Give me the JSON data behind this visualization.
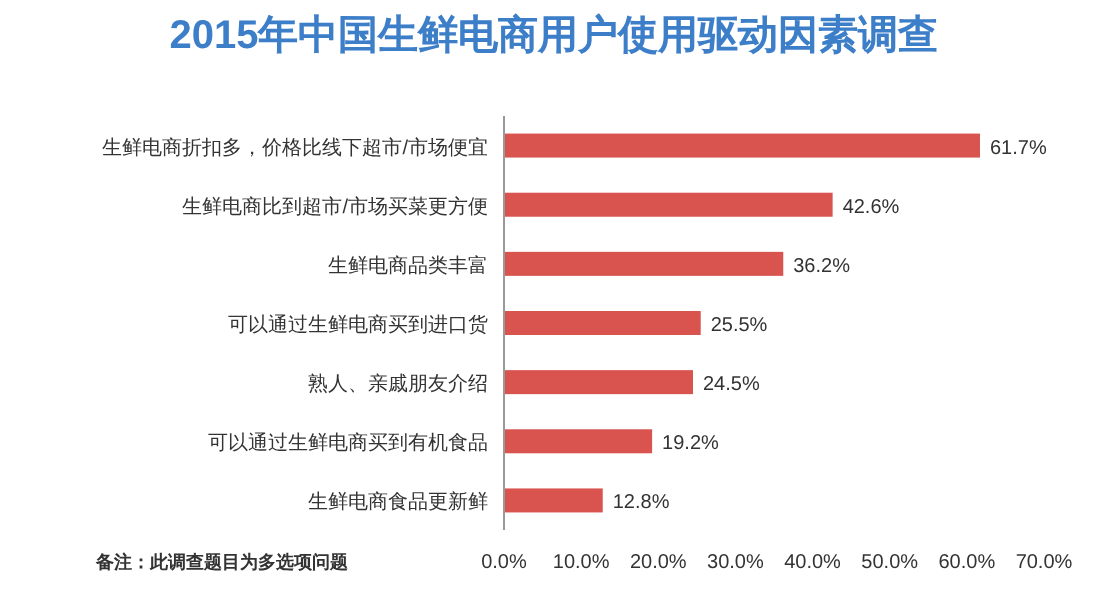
{
  "chart_data": {
    "type": "bar",
    "orientation": "horizontal",
    "title": "2015年中国生鲜电商用户使用驱动因素调查",
    "categories": [
      "生鲜电商折扣多，价格比线下超市/市场便宜",
      "生鲜电商比到超市/市场买菜更方便",
      "生鲜电商品类丰富",
      "可以通过生鲜电商买到进口货",
      "熟人、亲戚朋友介绍",
      "可以通过生鲜电商买到有机食品",
      "生鲜电商食品更新鲜"
    ],
    "values": [
      61.7,
      42.6,
      36.2,
      25.5,
      24.5,
      19.2,
      12.8
    ],
    "value_labels": [
      "61.7%",
      "42.6%",
      "36.2%",
      "25.5%",
      "24.5%",
      "19.2%",
      "12.8%"
    ],
    "color": "#d9534f",
    "xlim": [
      0,
      70
    ],
    "xticks": [
      {
        "value": 0,
        "label": "0.0%"
      },
      {
        "value": 10,
        "label": "10.0%"
      },
      {
        "value": 20,
        "label": "20.0%"
      },
      {
        "value": 30,
        "label": "30.0%"
      },
      {
        "value": 40,
        "label": "40.0%"
      },
      {
        "value": 50,
        "label": "50.0%"
      },
      {
        "value": 60,
        "label": "60.0%"
      },
      {
        "value": 70,
        "label": "70.0%"
      }
    ],
    "grid": false,
    "annotations": [
      "备注：此调查题目为多选项问题"
    ]
  }
}
